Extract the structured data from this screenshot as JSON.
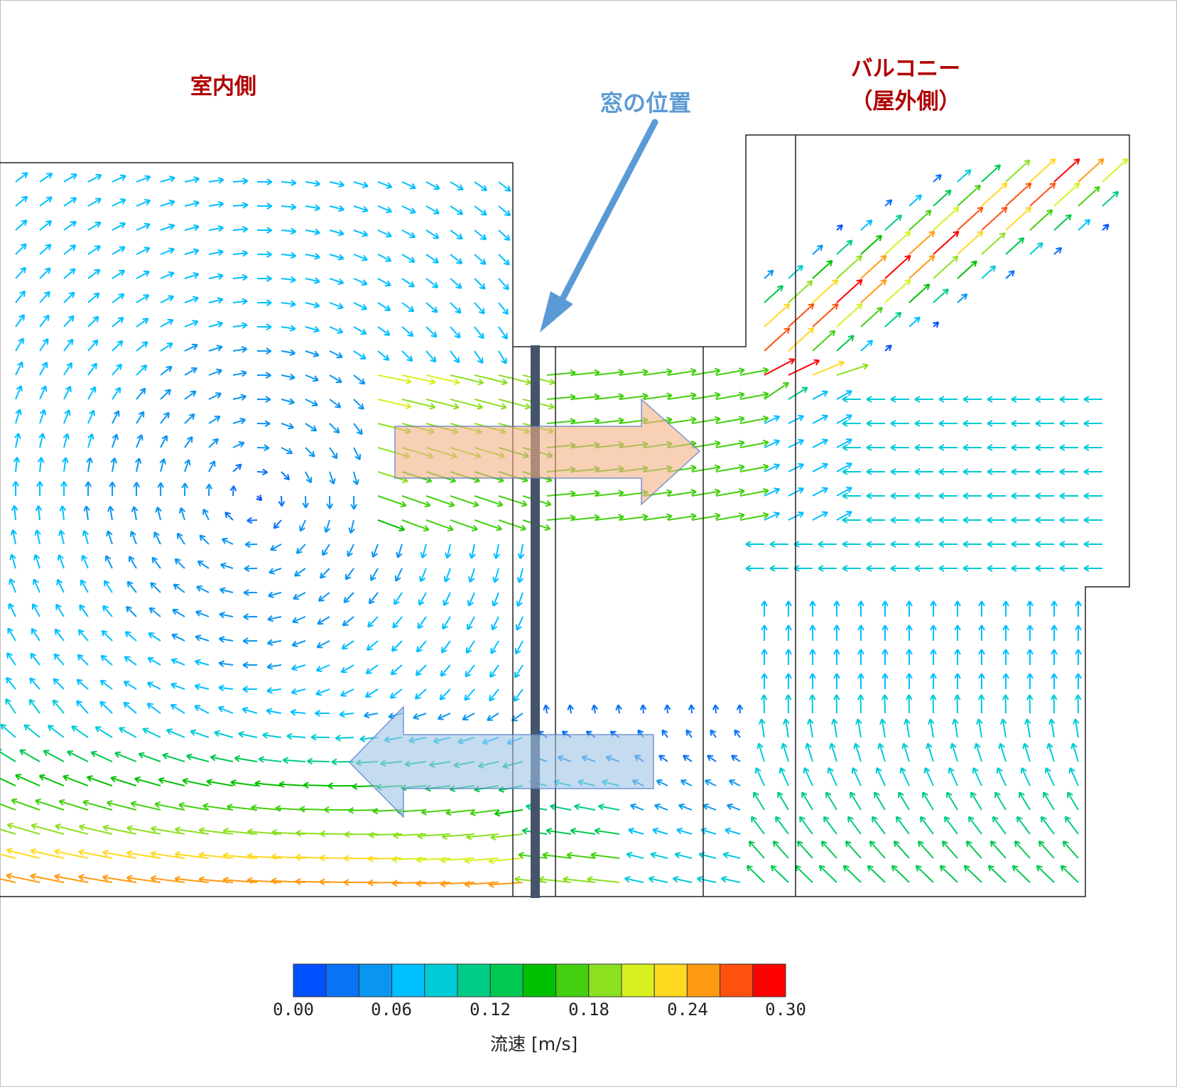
{
  "labels": {
    "indoor": "室内側",
    "balcony_line1": "バルコニー",
    "balcony_line2": "（屋外側）",
    "window_position": "窓の位置"
  },
  "legend": {
    "title": "流速 [m/s]",
    "ticks": [
      "0.00",
      "0.06",
      "0.12",
      "0.18",
      "0.24",
      "0.30"
    ],
    "colors": [
      "#0050ff",
      "#0a72f5",
      "#0a96f0",
      "#00bfff",
      "#00cbd6",
      "#00cc88",
      "#00c850",
      "#00c000",
      "#44d010",
      "#8ce020",
      "#d8f020",
      "#ffd820",
      "#ff9a10",
      "#ff5010",
      "#ff0000"
    ],
    "min": 0.0,
    "max": 0.3
  },
  "colors": {
    "label_red": "#b00000",
    "window_arrow": "#5b9bd5",
    "window_bar": "#44546a",
    "outflow_arrow_fill": "#f4b183",
    "inflow_arrow_fill": "#9dc3e6",
    "wall_line": "#222222"
  },
  "icons": {
    "outflow": "arrow-right-icon",
    "inflow": "arrow-left-icon",
    "pointer": "arrow-pointer-icon"
  }
}
